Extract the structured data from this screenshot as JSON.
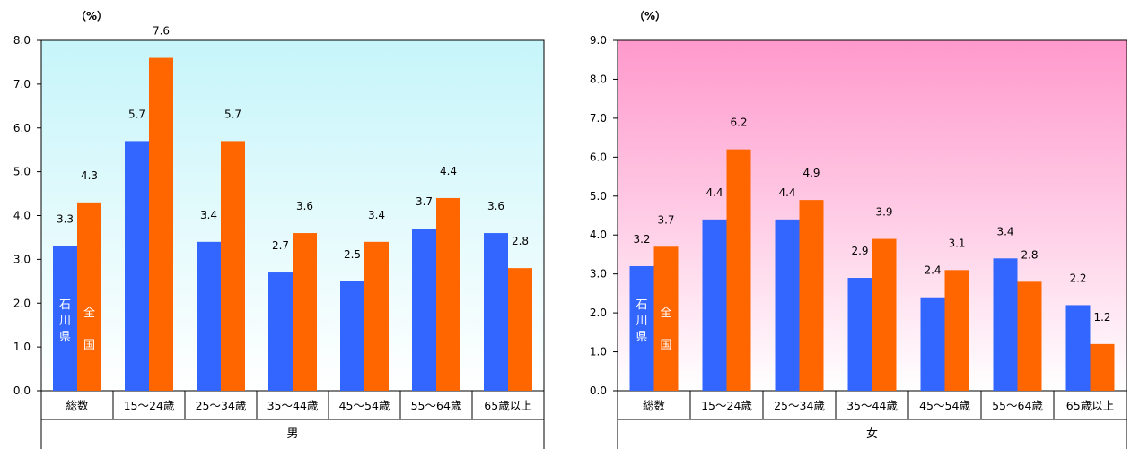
{
  "chart_data": [
    {
      "type": "bar",
      "unit": "（%）",
      "group_label": "男",
      "categories": [
        "総数",
        "15～24歳",
        "25～34歳",
        "35～44歳",
        "45～54歳",
        "55～64歳",
        "65歳以上"
      ],
      "series": [
        {
          "name": "石川県",
          "color": "#3366ff",
          "values": [
            3.3,
            5.7,
            3.4,
            2.7,
            2.5,
            3.7,
            3.6
          ]
        },
        {
          "name": "全国",
          "color": "#ff6600",
          "values": [
            4.3,
            7.6,
            5.7,
            3.6,
            3.4,
            4.4,
            2.8
          ]
        }
      ],
      "ylim": [
        0,
        8
      ],
      "yticks": [
        "0.0",
        "1.0",
        "2.0",
        "3.0",
        "4.0",
        "5.0",
        "6.0",
        "7.0",
        "8.0"
      ],
      "background": [
        "#ffffff",
        "#c6f5fa"
      ]
    },
    {
      "type": "bar",
      "unit": "（%）",
      "group_label": "女",
      "categories": [
        "総数",
        "15～24歳",
        "25～34歳",
        "35～44歳",
        "45～54歳",
        "55～64歳",
        "65歳以上"
      ],
      "series": [
        {
          "name": "石川県",
          "color": "#3366ff",
          "values": [
            3.2,
            4.4,
            4.4,
            2.9,
            2.4,
            3.4,
            2.2
          ]
        },
        {
          "name": "全国",
          "color": "#ff6600",
          "values": [
            3.7,
            6.2,
            4.9,
            3.9,
            3.1,
            2.8,
            1.2
          ]
        }
      ],
      "ylim": [
        0,
        9
      ],
      "yticks": [
        "0.0",
        "1.0",
        "2.0",
        "3.0",
        "4.0",
        "5.0",
        "6.0",
        "7.0",
        "8.0",
        "9.0"
      ],
      "background": [
        "#ffffff",
        "#ff99cc"
      ]
    }
  ]
}
